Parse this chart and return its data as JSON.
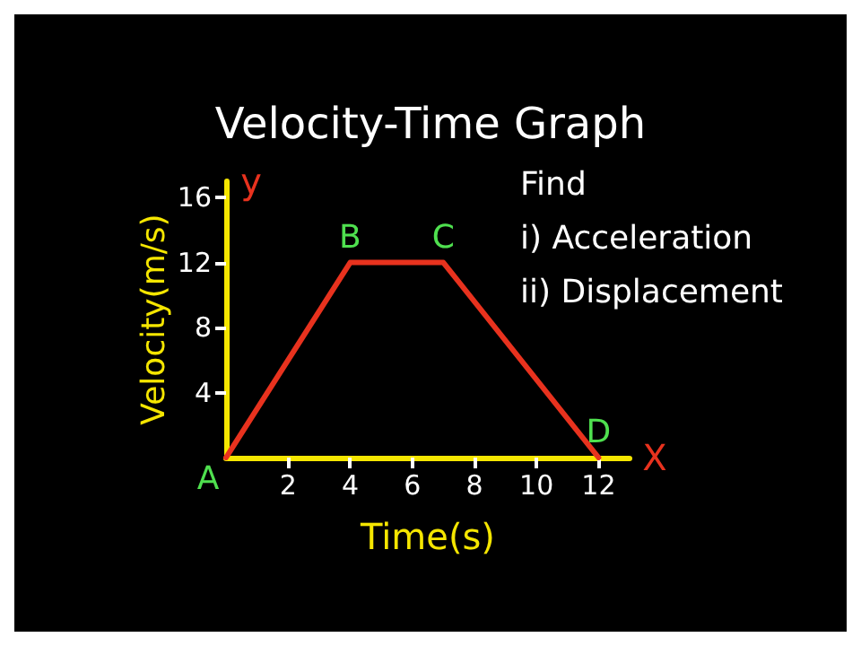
{
  "chart_data": {
    "type": "line",
    "title": "Velocity-Time Graph",
    "xlabel": "Time(s)",
    "ylabel": "Velocity(m/s)",
    "x": [
      0,
      4,
      7,
      12
    ],
    "series": [
      {
        "color": "#e8321e",
        "values": [
          0,
          12,
          12,
          0
        ]
      }
    ],
    "xlim": [
      0,
      13
    ],
    "xticks": [
      2,
      4,
      6,
      8,
      10,
      12
    ],
    "ylim": [
      0,
      17
    ],
    "yticks": [
      4,
      8,
      12,
      16
    ],
    "grid": false,
    "marker": "none",
    "line_style": "solid",
    "annotations": [
      {
        "text": "A",
        "x": 0,
        "y": 0
      },
      {
        "text": "B",
        "x": 4,
        "y": 12
      },
      {
        "text": "C",
        "x": 7,
        "y": 12
      },
      {
        "text": "D",
        "x": 12,
        "y": 0
      },
      "y",
      "X",
      "Find",
      "i) Acceleration",
      "ii) Displacement"
    ]
  }
}
